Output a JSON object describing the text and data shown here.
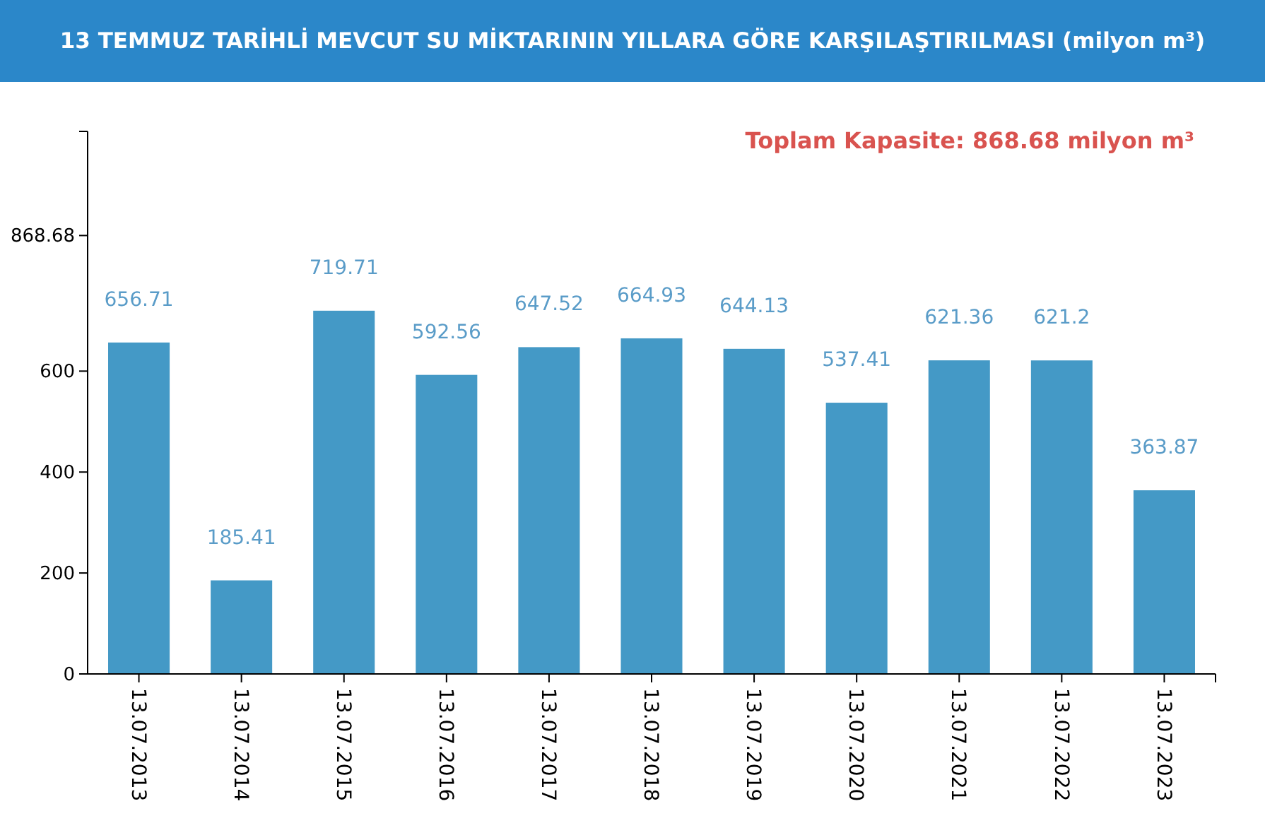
{
  "chart_data": {
    "type": "bar",
    "title": "13 TEMMUZ TARİHLİ MEVCUT SU MİKTARININ YILLARA GÖRE KARŞILAŞTIRILMASI (milyon m³)",
    "categories": [
      "13.07.2013",
      "13.07.2014",
      "13.07.2015",
      "13.07.2016",
      "13.07.2017",
      "13.07.2018",
      "13.07.2019",
      "13.07.2020",
      "13.07.2021",
      "13.07.2022",
      "13.07.2023"
    ],
    "values": [
      656.71,
      185.41,
      719.71,
      592.56,
      647.52,
      664.93,
      644.13,
      537.41,
      621.36,
      621.2,
      363.87
    ],
    "color": "#4499c6",
    "ylim": [
      0,
      1075
    ],
    "yticks": [
      0,
      200,
      400,
      600,
      868.68
    ],
    "data_labels": true,
    "grid": false,
    "annotations": [
      "Toplam Kapasite: 868.68 milyon m³"
    ]
  }
}
